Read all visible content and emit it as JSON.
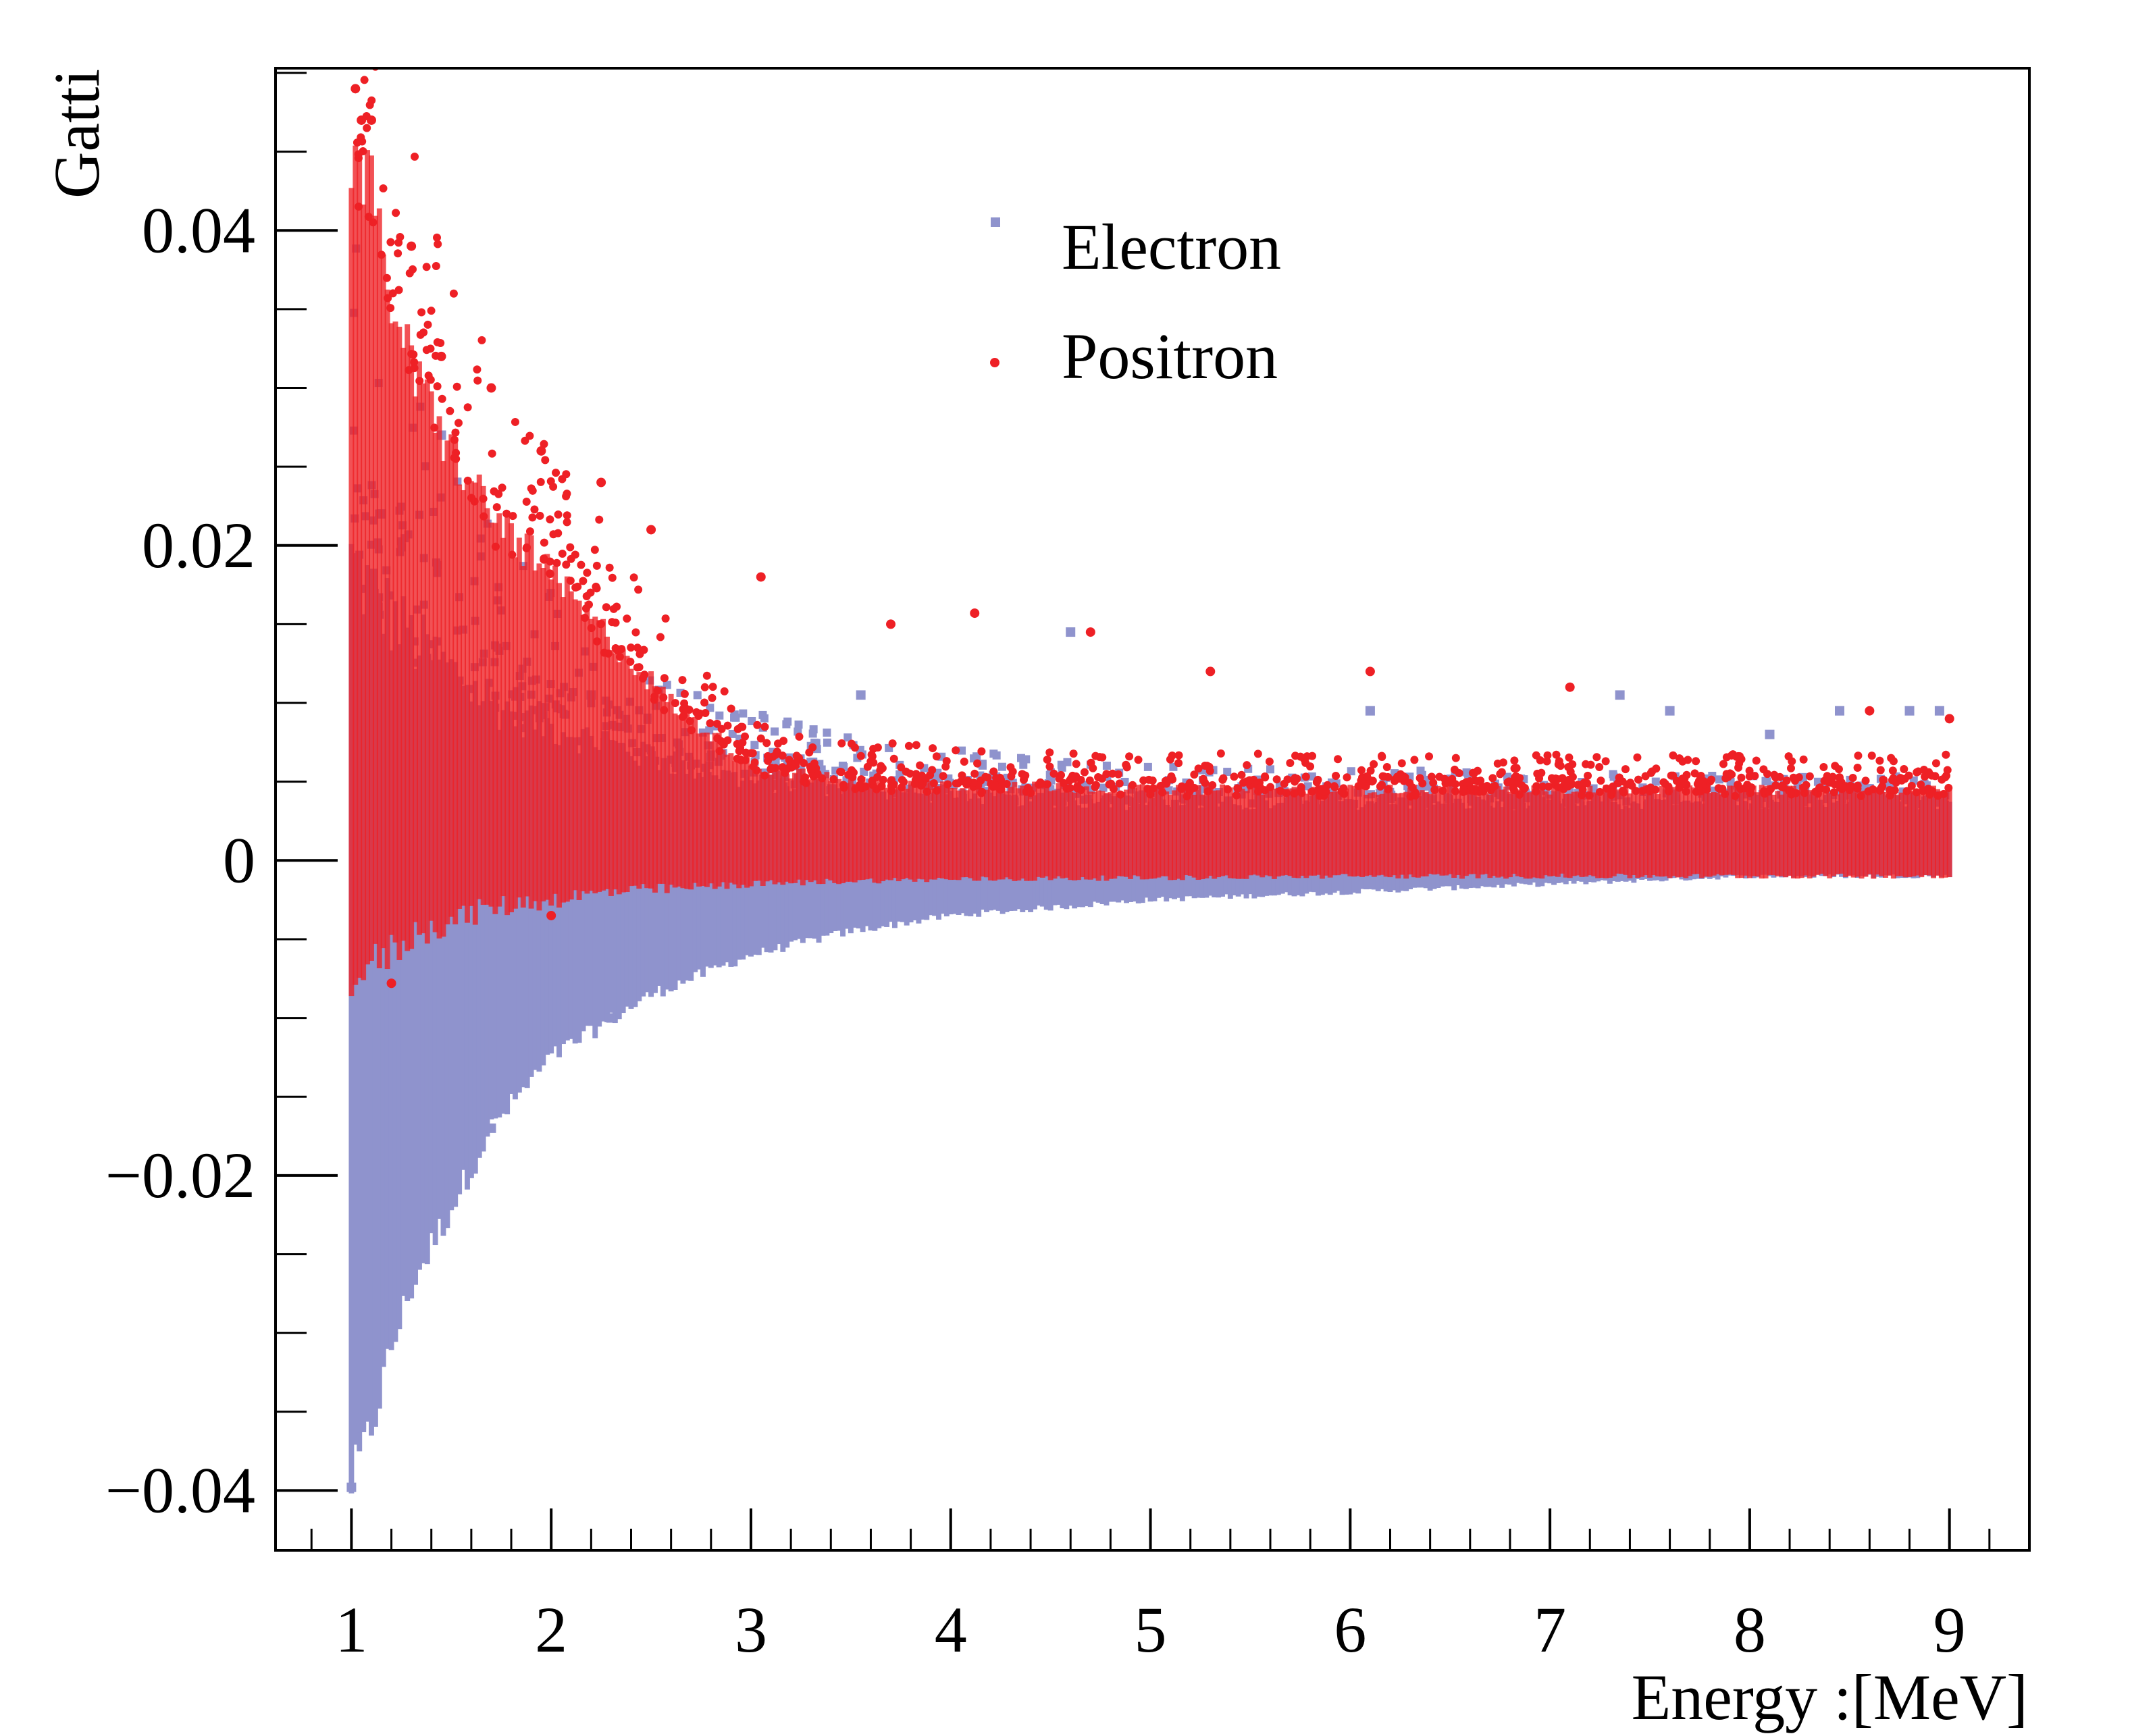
{
  "chart_data": {
    "type": "scatter",
    "title": "",
    "xlabel": "Energy :[MeV]",
    "ylabel": "Gatti",
    "xlim": [
      0.62,
      9.4
    ],
    "ylim": [
      -0.0438,
      0.0503
    ],
    "x_ticks": [
      {
        "value": 1,
        "label": "1"
      },
      {
        "value": 2,
        "label": "2"
      },
      {
        "value": 3,
        "label": "3"
      },
      {
        "value": 4,
        "label": "4"
      },
      {
        "value": 5,
        "label": "5"
      },
      {
        "value": 6,
        "label": "6"
      },
      {
        "value": 7,
        "label": "7"
      },
      {
        "value": 8,
        "label": "8"
      },
      {
        "value": 9,
        "label": "9"
      }
    ],
    "y_ticks": [
      {
        "value": -0.04,
        "label": "−0.04"
      },
      {
        "value": -0.02,
        "label": "−0.02"
      },
      {
        "value": 0,
        "label": "0"
      },
      {
        "value": 0.02,
        "label": "0.02"
      },
      {
        "value": 0.04,
        "label": "0.04"
      }
    ],
    "grid": false,
    "legend": {
      "position": "top-center",
      "entries": [
        "Electron",
        "Positron"
      ]
    },
    "series": [
      {
        "name": "Electron",
        "color": "#8f93cd",
        "marker": "square",
        "envelope": {
          "x": [
            1.0,
            1.1,
            1.2,
            1.3,
            1.5,
            1.7,
            2.0,
            2.5,
            3.0,
            3.5,
            4.0,
            5.0,
            6.0,
            7.0,
            8.0,
            9.0
          ],
          "upper": [
            0.019,
            0.017,
            0.0155,
            0.014,
            0.012,
            0.01,
            0.0085,
            0.0065,
            0.005,
            0.0045,
            0.004,
            0.0035,
            0.0035,
            0.0035,
            0.0035,
            0.0035
          ],
          "lower": [
            -0.0395,
            -0.036,
            -0.031,
            -0.027,
            -0.022,
            -0.017,
            -0.0125,
            -0.0085,
            -0.006,
            -0.0045,
            -0.0035,
            -0.0025,
            -0.002,
            -0.0015,
            -0.001,
            -0.001
          ]
        },
        "points": [
          {
            "x": 1.45,
            "y": 0.027
          },
          {
            "x": 1.15,
            "y": 0.022
          },
          {
            "x": 2.2,
            "y": 0.0105
          },
          {
            "x": 4.6,
            "y": 0.0145
          },
          {
            "x": 6.1,
            "y": 0.0095
          },
          {
            "x": 7.35,
            "y": 0.0105
          },
          {
            "x": 7.6,
            "y": 0.0095
          },
          {
            "x": 8.45,
            "y": 0.0095
          },
          {
            "x": 8.8,
            "y": 0.0095
          },
          {
            "x": 8.95,
            "y": 0.0095
          },
          {
            "x": 8.1,
            "y": 0.008
          },
          {
            "x": 3.55,
            "y": 0.0105
          },
          {
            "x": 1.0,
            "y": -0.0398
          },
          {
            "x": 1.05,
            "y": -0.036
          },
          {
            "x": 1.7,
            "y": -0.017
          },
          {
            "x": 2.3,
            "y": -0.01
          }
        ]
      },
      {
        "name": "Positron",
        "color": "#ee2025",
        "marker": "circle",
        "envelope": {
          "x": [
            1.0,
            1.1,
            1.2,
            1.3,
            1.5,
            1.7,
            2.0,
            2.3,
            2.6,
            3.0,
            3.5,
            4.0,
            5.0,
            6.0,
            7.0,
            8.0,
            9.0
          ],
          "upper": [
            0.045,
            0.042,
            0.036,
            0.031,
            0.026,
            0.022,
            0.018,
            0.014,
            0.01,
            0.006,
            0.005,
            0.0048,
            0.0045,
            0.0045,
            0.0045,
            0.0045,
            0.0045
          ],
          "lower": [
            -0.0072,
            -0.0068,
            -0.0058,
            -0.0048,
            -0.0038,
            -0.003,
            -0.0025,
            -0.002,
            -0.0018,
            -0.0015,
            -0.0013,
            -0.0012,
            -0.0011,
            -0.001,
            -0.001,
            -0.001,
            -0.001
          ]
        },
        "points": [
          {
            "x": 1.02,
            "y": 0.049
          },
          {
            "x": 1.05,
            "y": 0.047
          },
          {
            "x": 1.1,
            "y": 0.047
          },
          {
            "x": 1.3,
            "y": 0.039
          },
          {
            "x": 1.45,
            "y": 0.032
          },
          {
            "x": 1.7,
            "y": 0.03
          },
          {
            "x": 1.95,
            "y": 0.026
          },
          {
            "x": 2.25,
            "y": 0.024
          },
          {
            "x": 2.5,
            "y": 0.021
          },
          {
            "x": 3.05,
            "y": 0.018
          },
          {
            "x": 4.12,
            "y": 0.0157
          },
          {
            "x": 3.7,
            "y": 0.015
          },
          {
            "x": 4.7,
            "y": 0.0145
          },
          {
            "x": 5.3,
            "y": 0.012
          },
          {
            "x": 6.1,
            "y": 0.012
          },
          {
            "x": 7.1,
            "y": 0.011
          },
          {
            "x": 8.6,
            "y": 0.0095
          },
          {
            "x": 9.0,
            "y": 0.009
          },
          {
            "x": 1.2,
            "y": -0.0078
          },
          {
            "x": 2.0,
            "y": -0.0035
          }
        ]
      }
    ]
  }
}
